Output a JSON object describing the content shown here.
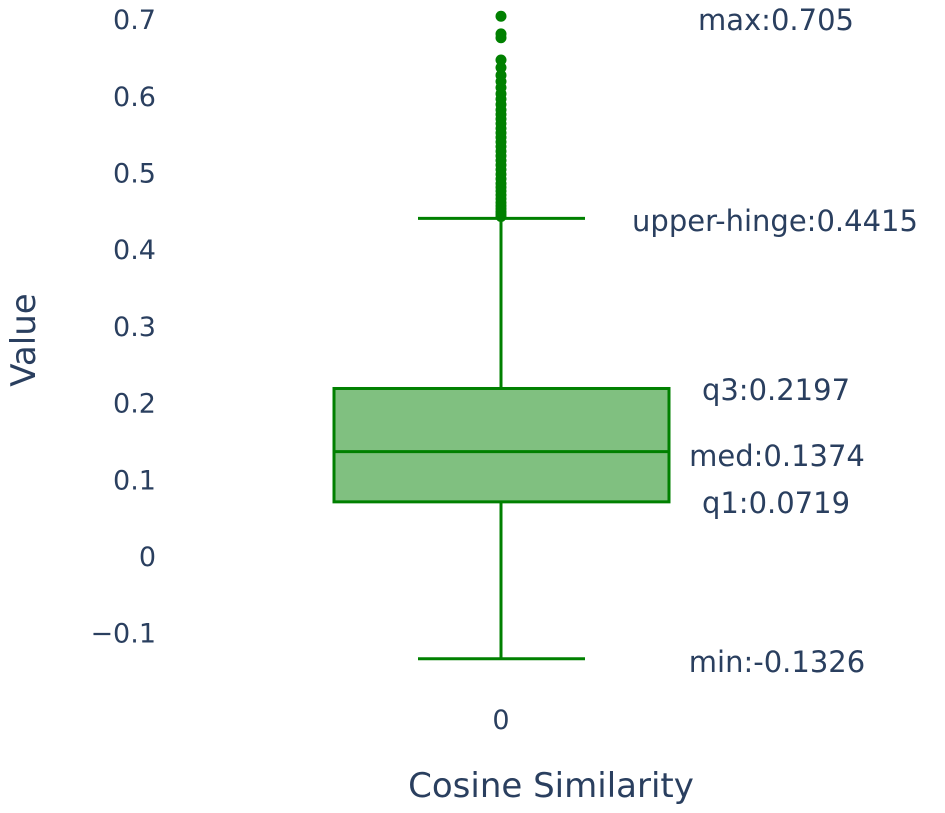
{
  "chart_data": {
    "type": "box",
    "xlabel": "Cosine Similarity",
    "ylabel": "Value",
    "categories": [
      "0"
    ],
    "ylim": [
      -0.165,
      0.72
    ],
    "yticks": [
      0.7,
      0.6,
      0.5,
      0.4,
      0.3,
      0.2,
      0.1,
      0,
      -0.1
    ],
    "ytick_labels": [
      "0.7",
      "0.6",
      "0.5",
      "0.4",
      "0.3",
      "0.2",
      "0.1",
      "0",
      "−0.1"
    ],
    "grid": false,
    "color": "#008000",
    "fill_color": "#80c080",
    "stats": {
      "min": -0.1326,
      "q1": 0.0719,
      "median": 0.1374,
      "q3": 0.2197,
      "upper_hinge": 0.4415,
      "max": 0.705
    },
    "outliers": [
      0.705,
      0.682,
      0.677,
      0.648,
      0.638,
      0.628,
      0.62,
      0.612,
      0.604,
      0.597,
      0.59,
      0.583,
      0.577,
      0.571,
      0.565,
      0.559,
      0.553,
      0.547,
      0.541,
      0.535,
      0.529,
      0.523,
      0.517,
      0.511,
      0.505,
      0.499,
      0.493,
      0.487,
      0.482,
      0.477,
      0.472,
      0.467,
      0.462,
      0.458,
      0.454,
      0.45,
      0.447,
      0.444
    ],
    "annotations": [
      {
        "key": "max",
        "text": "max:0.705",
        "y": 0.705
      },
      {
        "key": "upper_hinge",
        "text": "upper-hinge:0.4415",
        "y": 0.4415
      },
      {
        "key": "q3",
        "text": "q3:0.2197",
        "y": 0.2197
      },
      {
        "key": "median",
        "text": "med:0.1374",
        "y": 0.1374
      },
      {
        "key": "q1",
        "text": "q1:0.0719",
        "y": 0.0719
      },
      {
        "key": "min",
        "text": "min:-0.1326",
        "y": -0.1326
      }
    ]
  }
}
